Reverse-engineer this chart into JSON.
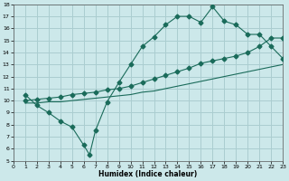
{
  "xlabel": "Humidex (Indice chaleur)",
  "xlim": [
    0,
    23
  ],
  "ylim": [
    5,
    18
  ],
  "yticks": [
    5,
    6,
    7,
    8,
    9,
    10,
    11,
    12,
    13,
    14,
    15,
    16,
    17,
    18
  ],
  "xticks": [
    0,
    1,
    2,
    3,
    4,
    5,
    6,
    7,
    8,
    9,
    10,
    11,
    12,
    13,
    14,
    15,
    16,
    17,
    18,
    19,
    20,
    21,
    22,
    23
  ],
  "bg_color": "#cce8ea",
  "grid_color": "#aacdd0",
  "line_color": "#1a6b5a",
  "line1_x": [
    1,
    2,
    3,
    4,
    5,
    6,
    6.5,
    7,
    8,
    9,
    10,
    11,
    12,
    13,
    14,
    15,
    16,
    17,
    18,
    19,
    20,
    21,
    22,
    23
  ],
  "line1_y": [
    10.5,
    9.6,
    9.0,
    8.3,
    7.8,
    6.3,
    5.5,
    7.5,
    9.9,
    11.5,
    13.0,
    14.5,
    15.3,
    16.3,
    17.0,
    17.0,
    16.5,
    17.8,
    16.6,
    16.3,
    15.5,
    15.5,
    14.5,
    13.5
  ],
  "line2_x": [
    1,
    2,
    3,
    4,
    5,
    6,
    7,
    8,
    9,
    10,
    11,
    12,
    13,
    14,
    15,
    16,
    17,
    18,
    19,
    20,
    21,
    22,
    23
  ],
  "line2_y": [
    10.0,
    10.1,
    10.2,
    10.3,
    10.5,
    10.6,
    10.7,
    10.9,
    11.0,
    11.2,
    11.5,
    11.8,
    12.1,
    12.4,
    12.7,
    13.1,
    13.3,
    13.5,
    13.7,
    14.0,
    14.5,
    15.2,
    15.2
  ],
  "line3_x": [
    1,
    2,
    3,
    4,
    5,
    6,
    7,
    8,
    9,
    10,
    11,
    12,
    13,
    14,
    15,
    16,
    17,
    18,
    19,
    20,
    21,
    22,
    23
  ],
  "line3_y": [
    9.8,
    9.8,
    9.9,
    9.9,
    10.0,
    10.1,
    10.2,
    10.3,
    10.4,
    10.5,
    10.7,
    10.8,
    11.0,
    11.2,
    11.4,
    11.6,
    11.8,
    12.0,
    12.2,
    12.4,
    12.6,
    12.8,
    13.0
  ],
  "marker": "D",
  "markersize": 2.5
}
